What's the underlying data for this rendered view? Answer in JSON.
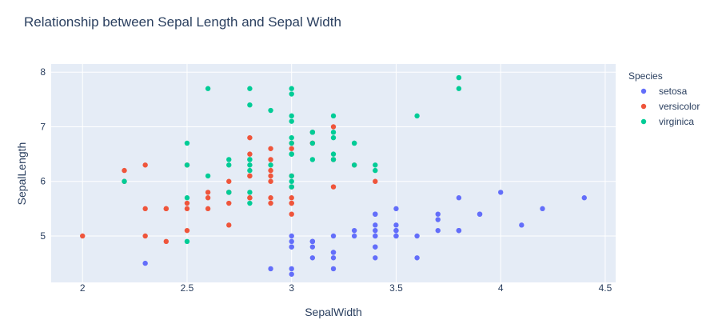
{
  "chart_data": {
    "type": "scatter",
    "title": "Relationship between Sepal Length and Sepal Width",
    "xlabel": "SepalWidth",
    "ylabel": "SepalLength",
    "xlim": [
      1.85,
      4.55
    ],
    "ylim": [
      4.15,
      8.15
    ],
    "xticks": [
      2,
      2.5,
      3,
      3.5,
      4,
      4.5
    ],
    "xtick_labels": [
      "2",
      "2.5",
      "3",
      "3.5",
      "4",
      "4.5"
    ],
    "yticks": [
      5,
      6,
      7,
      8
    ],
    "ytick_labels": [
      "5",
      "6",
      "7",
      "8"
    ],
    "grid": true,
    "legend": {
      "title": "Species",
      "placement": "right"
    },
    "series": [
      {
        "name": "setosa",
        "color": "#636efa",
        "points": [
          [
            3.5,
            5.1
          ],
          [
            3.0,
            4.9
          ],
          [
            3.2,
            4.7
          ],
          [
            3.1,
            4.6
          ],
          [
            3.6,
            5.0
          ],
          [
            3.9,
            5.4
          ],
          [
            3.4,
            4.6
          ],
          [
            3.4,
            5.0
          ],
          [
            2.9,
            4.4
          ],
          [
            3.1,
            4.9
          ],
          [
            3.7,
            5.4
          ],
          [
            3.4,
            4.8
          ],
          [
            3.0,
            4.8
          ],
          [
            3.0,
            4.3
          ],
          [
            4.0,
            5.8
          ],
          [
            4.4,
            5.7
          ],
          [
            3.9,
            5.4
          ],
          [
            3.5,
            5.1
          ],
          [
            3.8,
            5.7
          ],
          [
            3.8,
            5.1
          ],
          [
            3.4,
            5.4
          ],
          [
            3.7,
            5.1
          ],
          [
            3.6,
            4.6
          ],
          [
            3.3,
            5.1
          ],
          [
            3.4,
            4.8
          ],
          [
            3.0,
            5.0
          ],
          [
            3.4,
            5.0
          ],
          [
            3.5,
            5.2
          ],
          [
            3.4,
            5.2
          ],
          [
            3.2,
            4.7
          ],
          [
            3.1,
            4.8
          ],
          [
            3.4,
            5.4
          ],
          [
            4.1,
            5.2
          ],
          [
            4.2,
            5.5
          ],
          [
            3.1,
            4.9
          ],
          [
            3.2,
            5.0
          ],
          [
            3.5,
            5.5
          ],
          [
            3.1,
            4.9
          ],
          [
            3.0,
            4.4
          ],
          [
            3.4,
            5.1
          ],
          [
            3.5,
            5.0
          ],
          [
            2.3,
            4.5
          ],
          [
            3.2,
            4.4
          ],
          [
            3.5,
            5.0
          ],
          [
            3.8,
            5.1
          ],
          [
            3.0,
            4.8
          ],
          [
            3.8,
            5.1
          ],
          [
            3.2,
            4.6
          ],
          [
            3.7,
            5.3
          ],
          [
            3.3,
            5.0
          ]
        ]
      },
      {
        "name": "versicolor",
        "color": "#ef553b",
        "points": [
          [
            3.2,
            7.0
          ],
          [
            3.2,
            6.4
          ],
          [
            3.1,
            6.9
          ],
          [
            2.3,
            5.5
          ],
          [
            2.8,
            6.5
          ],
          [
            2.8,
            5.7
          ],
          [
            3.3,
            6.3
          ],
          [
            2.4,
            4.9
          ],
          [
            2.9,
            6.6
          ],
          [
            2.7,
            5.2
          ],
          [
            2.0,
            5.0
          ],
          [
            3.0,
            5.9
          ],
          [
            2.2,
            6.0
          ],
          [
            2.9,
            6.1
          ],
          [
            2.9,
            5.6
          ],
          [
            3.1,
            6.7
          ],
          [
            3.0,
            5.6
          ],
          [
            2.7,
            5.8
          ],
          [
            2.2,
            6.2
          ],
          [
            2.5,
            5.6
          ],
          [
            3.2,
            5.9
          ],
          [
            2.8,
            6.1
          ],
          [
            2.5,
            6.3
          ],
          [
            2.8,
            6.1
          ],
          [
            2.9,
            6.4
          ],
          [
            3.0,
            6.6
          ],
          [
            2.8,
            6.8
          ],
          [
            3.0,
            6.7
          ],
          [
            2.9,
            6.0
          ],
          [
            2.6,
            5.7
          ],
          [
            2.4,
            5.5
          ],
          [
            2.4,
            5.5
          ],
          [
            2.7,
            5.8
          ],
          [
            2.7,
            6.0
          ],
          [
            3.0,
            5.4
          ],
          [
            3.4,
            6.0
          ],
          [
            3.1,
            6.7
          ],
          [
            2.3,
            6.3
          ],
          [
            3.0,
            5.6
          ],
          [
            2.5,
            5.5
          ],
          [
            2.6,
            5.5
          ],
          [
            3.0,
            6.1
          ],
          [
            2.6,
            5.8
          ],
          [
            2.3,
            5.0
          ],
          [
            2.7,
            5.6
          ],
          [
            3.0,
            5.7
          ],
          [
            2.9,
            5.7
          ],
          [
            2.9,
            6.2
          ],
          [
            2.5,
            5.1
          ],
          [
            2.8,
            5.7
          ]
        ]
      },
      {
        "name": "virginica",
        "color": "#00cc96",
        "points": [
          [
            3.3,
            6.3
          ],
          [
            2.7,
            5.8
          ],
          [
            3.0,
            7.1
          ],
          [
            2.9,
            6.3
          ],
          [
            3.0,
            6.5
          ],
          [
            3.0,
            7.6
          ],
          [
            2.5,
            4.9
          ],
          [
            2.9,
            7.3
          ],
          [
            2.5,
            6.7
          ],
          [
            3.6,
            7.2
          ],
          [
            3.2,
            6.5
          ],
          [
            2.7,
            6.4
          ],
          [
            3.0,
            6.8
          ],
          [
            2.5,
            5.7
          ],
          [
            2.8,
            5.8
          ],
          [
            3.2,
            6.4
          ],
          [
            3.0,
            6.5
          ],
          [
            3.8,
            7.7
          ],
          [
            2.6,
            7.7
          ],
          [
            2.2,
            6.0
          ],
          [
            3.2,
            6.9
          ],
          [
            2.8,
            5.6
          ],
          [
            2.8,
            7.7
          ],
          [
            2.7,
            6.3
          ],
          [
            3.3,
            6.7
          ],
          [
            3.2,
            7.2
          ],
          [
            2.8,
            6.2
          ],
          [
            3.0,
            6.1
          ],
          [
            2.8,
            6.4
          ],
          [
            3.0,
            7.2
          ],
          [
            2.8,
            7.4
          ],
          [
            3.8,
            7.9
          ],
          [
            2.8,
            6.4
          ],
          [
            2.8,
            6.3
          ],
          [
            2.6,
            6.1
          ],
          [
            3.0,
            7.7
          ],
          [
            3.4,
            6.3
          ],
          [
            3.1,
            6.4
          ],
          [
            3.0,
            6.0
          ],
          [
            3.1,
            6.9
          ],
          [
            3.1,
            6.7
          ],
          [
            3.1,
            6.9
          ],
          [
            2.7,
            5.8
          ],
          [
            3.2,
            6.8
          ],
          [
            3.3,
            6.7
          ],
          [
            3.0,
            6.7
          ],
          [
            2.5,
            6.3
          ],
          [
            3.0,
            6.5
          ],
          [
            3.4,
            6.2
          ],
          [
            3.0,
            5.9
          ]
        ]
      }
    ]
  }
}
